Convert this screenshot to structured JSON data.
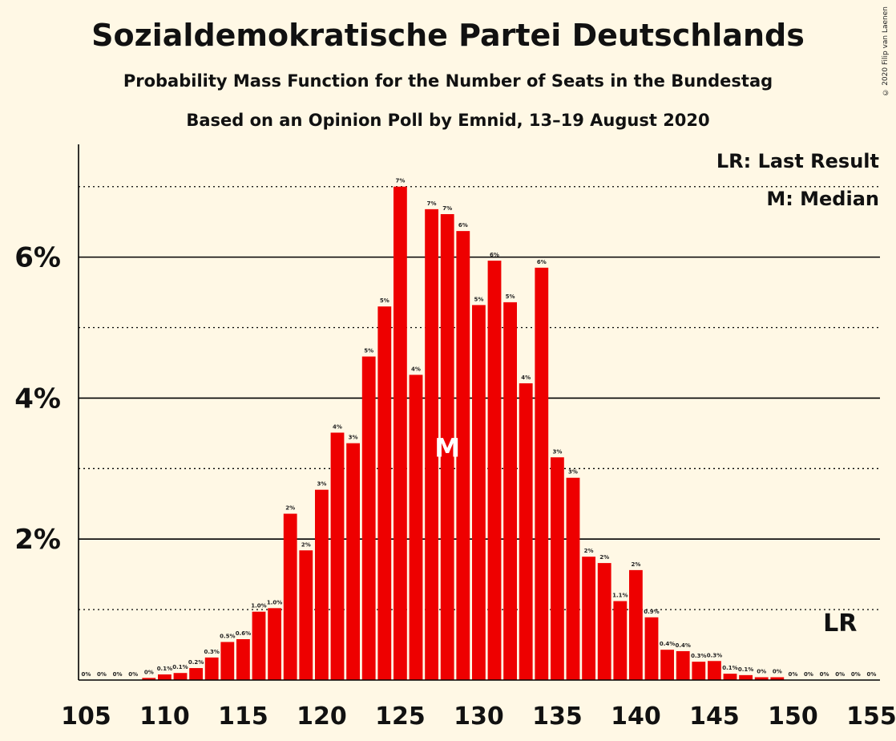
{
  "copyright": "© 2020 Filip van Laenen",
  "chart_data": {
    "type": "bar",
    "title": "Sozialdemokratische Partei Deutschlands",
    "subtitle": "Probability Mass Function for the Number of Seats in the Bundestag",
    "source": "Based on an Opinion Poll by Emnid, 13–19 August 2020",
    "bar_color": "#ee0000",
    "background": "#fff8e5",
    "x": [
      105,
      106,
      107,
      108,
      109,
      110,
      111,
      112,
      113,
      114,
      115,
      116,
      117,
      118,
      119,
      120,
      121,
      122,
      123,
      124,
      125,
      126,
      127,
      128,
      129,
      130,
      131,
      132,
      133,
      134,
      135,
      136,
      137,
      138,
      139,
      140,
      141,
      142,
      143,
      144,
      145,
      146,
      147,
      148,
      149,
      150,
      151,
      152,
      153,
      154,
      155
    ],
    "values": [
      0,
      0,
      0,
      0,
      0.03,
      0.08,
      0.1,
      0.17,
      0.32,
      0.54,
      0.58,
      0.97,
      1.02,
      2.36,
      1.84,
      2.7,
      3.51,
      3.36,
      4.59,
      5.3,
      7.0,
      4.33,
      6.68,
      6.61,
      6.37,
      5.32,
      5.95,
      5.36,
      4.21,
      5.85,
      3.16,
      2.87,
      1.75,
      1.66,
      1.12,
      1.56,
      0.89,
      0.43,
      0.41,
      0.26,
      0.27,
      0.09,
      0.07,
      0.04,
      0.04,
      0,
      0,
      0,
      0,
      0,
      0
    ],
    "labels": [
      "0%",
      "0%",
      "0%",
      "0%",
      "0%",
      "0.1%",
      "0.1%",
      "0.2%",
      "0.3%",
      "0.5%",
      "0.6%",
      "1.0%",
      "1.0%",
      "2%",
      "2%",
      "3%",
      "4%",
      "3%",
      "5%",
      "5%",
      "7%",
      "4%",
      "7%",
      "7%",
      "6%",
      "5%",
      "6%",
      "5%",
      "4%",
      "6%",
      "3%",
      "3%",
      "2%",
      "2%",
      "1.1%",
      "2%",
      "0.9%",
      "0.4%",
      "0.4%",
      "0.3%",
      "0.3%",
      "0.1%",
      "0.1%",
      "0%",
      "0%",
      "0%",
      "0%",
      "0%",
      "0%",
      "0%",
      "0%"
    ],
    "x_ticks": [
      105,
      110,
      115,
      120,
      125,
      130,
      135,
      140,
      145,
      150,
      155
    ],
    "x_tick_labels": [
      "105",
      "110",
      "115",
      "120",
      "125",
      "130",
      "135",
      "140",
      "145",
      "150",
      "155"
    ],
    "y_ticks": [
      2,
      4,
      6
    ],
    "y_tick_labels": [
      "2%",
      "4%",
      "6%"
    ],
    "ylim": [
      0,
      7.6
    ],
    "grid_solid": [
      2,
      4,
      6
    ],
    "grid_dotted": [
      1,
      3,
      5,
      7
    ],
    "median_seat": 128,
    "median_marker": "M",
    "last_result_seat": 153,
    "last_result_marker": "LR",
    "legend": [
      "LR: Last Result",
      "M: Median"
    ]
  }
}
